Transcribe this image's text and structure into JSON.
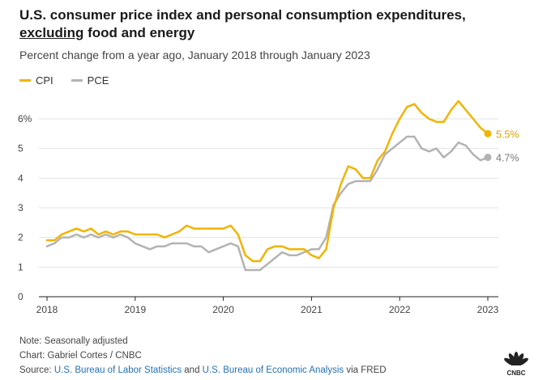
{
  "title_line1": "U.S. consumer price index and personal consumption expenditures,",
  "title_line2_underlined": "excluding",
  "title_line2_rest": " food and energy",
  "subtitle": "Percent change from a year ago, January 2018 through January 2023",
  "note": "Note: Seasonally adjusted",
  "credit": "Chart: Gabriel Cortes / CNBC",
  "source_prefix": "Source: ",
  "source_link1": "U.S. Bureau of Labor Statistics",
  "source_mid": " and ",
  "source_link2": "U.S. Bureau of Economic Analysis",
  "source_suffix": " via FRED",
  "logo_text": "CNBC",
  "colors": {
    "cpi": "#f0b400",
    "pce": "#b3b3b3",
    "end_label_cpi": "#d9a300",
    "end_label_pce": "#7a7a7a"
  },
  "chart_data": {
    "type": "line",
    "x_start": "2018-01",
    "x_end": "2023-01",
    "x_ticks": [
      "2018",
      "2019",
      "2020",
      "2021",
      "2022",
      "2023"
    ],
    "y_ticks": [
      "0",
      "1",
      "2",
      "3",
      "4",
      "5",
      "6%"
    ],
    "ylim": [
      0,
      6.6
    ],
    "grid": "horizontal",
    "legend_position": "top-left",
    "series": [
      {
        "name": "CPI",
        "end_label": "5.5%",
        "values": [
          1.9,
          1.9,
          2.1,
          2.2,
          2.3,
          2.2,
          2.3,
          2.1,
          2.2,
          2.1,
          2.2,
          2.2,
          2.1,
          2.1,
          2.1,
          2.1,
          2.0,
          2.1,
          2.2,
          2.4,
          2.3,
          2.3,
          2.3,
          2.3,
          2.3,
          2.4,
          2.1,
          1.4,
          1.2,
          1.2,
          1.6,
          1.7,
          1.7,
          1.6,
          1.6,
          1.6,
          1.4,
          1.3,
          1.6,
          3.0,
          3.8,
          4.4,
          4.3,
          4.0,
          4.0,
          4.6,
          4.9,
          5.5,
          6.0,
          6.4,
          6.5,
          6.2,
          6.0,
          5.9,
          5.9,
          6.3,
          6.6,
          6.3,
          6.0,
          5.7,
          5.5
        ],
        "color": "#f0b400"
      },
      {
        "name": "PCE",
        "end_label": "4.7%",
        "values": [
          1.7,
          1.8,
          2.0,
          2.0,
          2.1,
          2.0,
          2.1,
          2.0,
          2.1,
          2.0,
          2.1,
          2.0,
          1.8,
          1.7,
          1.6,
          1.7,
          1.7,
          1.8,
          1.8,
          1.8,
          1.7,
          1.7,
          1.5,
          1.6,
          1.7,
          1.8,
          1.7,
          0.9,
          0.9,
          0.9,
          1.1,
          1.3,
          1.5,
          1.4,
          1.4,
          1.5,
          1.6,
          1.6,
          2.0,
          3.1,
          3.5,
          3.8,
          3.9,
          3.9,
          3.9,
          4.3,
          4.8,
          5.0,
          5.2,
          5.4,
          5.4,
          5.0,
          4.9,
          5.0,
          4.7,
          4.9,
          5.2,
          5.1,
          4.8,
          4.6,
          4.7
        ],
        "color": "#b3b3b3"
      }
    ]
  }
}
